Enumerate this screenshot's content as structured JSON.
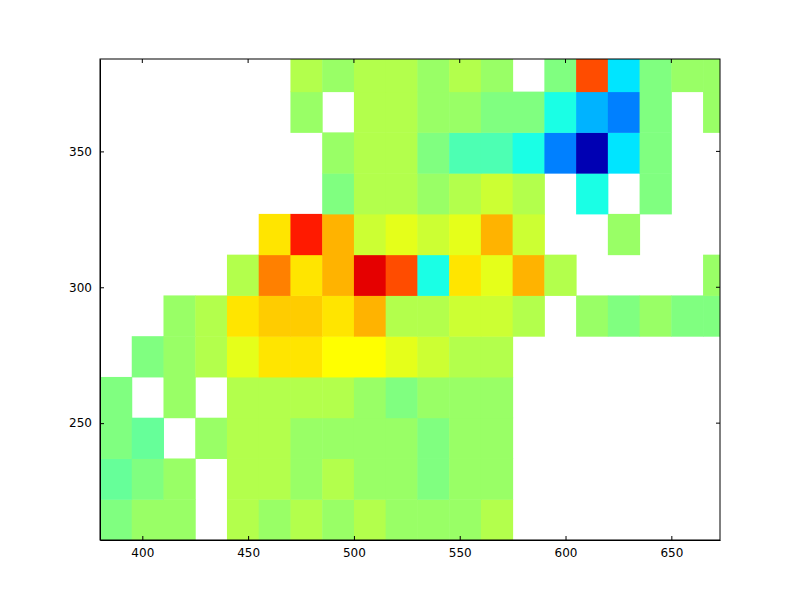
{
  "chart_data": {
    "type": "heatmap",
    "x": [
      380,
      395,
      410,
      425,
      440,
      455,
      470,
      485,
      500,
      515,
      530,
      545,
      560,
      575,
      590,
      605,
      620,
      635,
      650,
      665,
      673
    ],
    "y": [
      207,
      222,
      237,
      252,
      267,
      282,
      297,
      312,
      327,
      342,
      357,
      372,
      384
    ],
    "cells": [
      [
        0.0,
        0.05,
        0.05,
        null,
        0.1,
        0.05,
        0.1,
        0.05,
        0.1,
        0.05,
        0.05,
        0.05,
        0.1,
        null,
        null,
        null,
        null,
        null,
        null,
        null
      ],
      [
        -0.05,
        0.0,
        0.05,
        null,
        0.1,
        0.1,
        0.05,
        0.1,
        0.05,
        0.05,
        0.0,
        0.05,
        0.05,
        null,
        null,
        null,
        null,
        null,
        null,
        null
      ],
      [
        0.0,
        -0.05,
        null,
        0.05,
        0.1,
        0.1,
        0.05,
        0.05,
        0.05,
        0.05,
        0.0,
        0.05,
        0.05,
        null,
        null,
        null,
        null,
        null,
        null,
        null
      ],
      [
        0.0,
        null,
        0.05,
        null,
        0.1,
        0.1,
        0.1,
        0.1,
        0.05,
        0.0,
        0.05,
        0.05,
        0.05,
        null,
        null,
        null,
        null,
        null,
        null,
        null
      ],
      [
        null,
        0.0,
        0.05,
        0.1,
        0.2,
        0.3,
        0.3,
        0.25,
        0.25,
        0.2,
        0.15,
        0.1,
        0.1,
        null,
        null,
        null,
        null,
        null,
        null,
        null
      ],
      [
        null,
        null,
        0.05,
        0.1,
        0.3,
        0.35,
        0.35,
        0.3,
        0.4,
        0.1,
        0.1,
        0.15,
        0.15,
        0.1,
        null,
        0.05,
        0.0,
        0.05,
        0.0,
        0.0
      ],
      [
        null,
        null,
        null,
        null,
        0.1,
        0.5,
        0.3,
        0.4,
        0.8,
        0.6,
        -0.2,
        0.3,
        0.2,
        0.4,
        0.1,
        null,
        null,
        null,
        null,
        0.05
      ],
      [
        null,
        null,
        null,
        null,
        null,
        0.3,
        0.7,
        0.4,
        0.15,
        0.2,
        0.15,
        0.2,
        0.4,
        0.15,
        null,
        null,
        0.05,
        null,
        null,
        null
      ],
      [
        null,
        null,
        null,
        null,
        null,
        null,
        null,
        0.0,
        0.1,
        0.1,
        0.05,
        0.1,
        0.15,
        0.1,
        null,
        -0.2,
        null,
        0.0,
        null,
        null
      ],
      [
        null,
        null,
        null,
        null,
        null,
        null,
        null,
        0.05,
        0.1,
        0.1,
        0.0,
        -0.1,
        -0.1,
        -0.2,
        -0.5,
        -0.9,
        -0.3,
        0.0,
        null,
        null
      ],
      [
        null,
        null,
        null,
        null,
        null,
        null,
        0.05,
        null,
        0.1,
        0.1,
        0.05,
        0.05,
        0.0,
        0.0,
        -0.2,
        -0.4,
        -0.5,
        0.0,
        null,
        0.05
      ],
      [
        null,
        null,
        null,
        null,
        null,
        null,
        0.1,
        0.05,
        0.1,
        0.1,
        0.05,
        0.1,
        0.05,
        null,
        0.0,
        0.6,
        -0.3,
        0.0,
        0.05,
        0.05
      ]
    ],
    "clim": [
      -1,
      1
    ],
    "xlim": [
      380,
      673
    ],
    "ylim": [
      207,
      384
    ],
    "xticks": [
      400,
      450,
      500,
      550,
      600,
      650
    ],
    "yticks": [
      250,
      300,
      350
    ]
  }
}
